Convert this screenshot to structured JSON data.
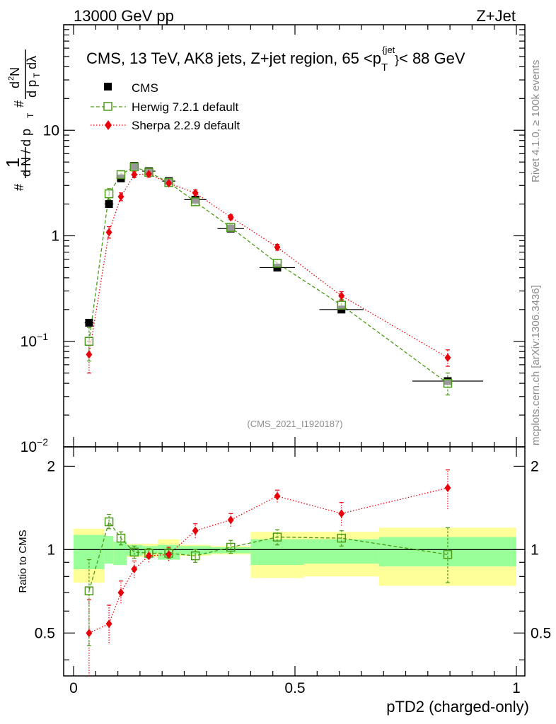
{
  "chart_data": [
    {
      "type": "scatter",
      "panel": "main",
      "header_left": "13000 GeV pp",
      "header_right": "Z+Jet",
      "title": "CMS, 13 TeV, AK8 jets, Z+jet region, 65 <p",
      "title_sub": "T",
      "title_sup": "{jet",
      "title_sup2": "}",
      "title_tail": "< 88 GeV",
      "ylabel": "# 1/dN/dp_T # d²N/dp_T dλ",
      "yscale": "log",
      "ylim": [
        0.01,
        100
      ],
      "xlim": [
        -0.02,
        1.02
      ],
      "y_ticks": [
        {
          "v": 0.01,
          "base": "10",
          "exp": "−2"
        },
        {
          "v": 0.1,
          "base": "10",
          "exp": "−1"
        },
        {
          "v": 1,
          "base": "1",
          "exp": ""
        },
        {
          "v": 10,
          "base": "10",
          "exp": ""
        }
      ],
      "x": [
        0.035,
        0.08,
        0.107,
        0.137,
        0.17,
        0.215,
        0.275,
        0.355,
        0.46,
        0.605,
        0.845
      ],
      "xerr": [
        0.01,
        0.01,
        0.01,
        0.01,
        0.015,
        0.015,
        0.025,
        0.03,
        0.04,
        0.05,
        0.08
      ],
      "series": [
        {
          "name": "CMS",
          "marker": "filled-square",
          "color": "#000000",
          "values": [
            0.15,
            2.0,
            3.5,
            4.6,
            4.1,
            3.3,
            2.2,
            1.17,
            0.5,
            0.2,
            0.042
          ]
        },
        {
          "name": "Herwig 7.2.1 default",
          "marker": "open-square",
          "color": "#4a9a16",
          "line": "dashed",
          "values": [
            0.1,
            2.5,
            3.8,
            4.5,
            4.0,
            3.2,
            2.1,
            1.2,
            0.55,
            0.22,
            0.04
          ],
          "err_lo": [
            0.065,
            2.2,
            3.5,
            4.2,
            3.75,
            3.0,
            1.95,
            1.12,
            0.5,
            0.19,
            0.031
          ],
          "err_hi": [
            0.135,
            2.8,
            4.1,
            4.8,
            4.25,
            3.4,
            2.25,
            1.28,
            0.6,
            0.25,
            0.05
          ]
        },
        {
          "name": "Sherpa 2.2.9 default",
          "marker": "filled-diamond",
          "color": "#e8000b",
          "line": "dotted",
          "values": [
            0.075,
            1.08,
            2.35,
            3.8,
            3.85,
            3.15,
            2.55,
            1.5,
            0.78,
            0.27,
            0.07
          ],
          "err_lo": [
            0.05,
            0.95,
            2.15,
            3.55,
            3.6,
            2.95,
            2.38,
            1.42,
            0.73,
            0.245,
            0.058
          ],
          "err_hi": [
            0.1,
            1.22,
            2.55,
            4.05,
            4.1,
            3.35,
            2.72,
            1.58,
            0.83,
            0.295,
            0.083
          ]
        }
      ],
      "watermark": "(CMS_2021_I1920187)"
    },
    {
      "type": "scatter",
      "panel": "ratio",
      "ylabel": "Ratio to CMS",
      "xlabel": "pTD2 (charged-only)",
      "ylim": [
        0.35,
        2.35
      ],
      "y_ticks": [
        0.5,
        1,
        2
      ],
      "x_ticks": [
        0,
        0.5,
        1
      ],
      "x_tick_labels": [
        "0",
        "0.5",
        "1"
      ],
      "bands": {
        "edges": [
          0,
          0.07,
          0.09,
          0.12,
          0.155,
          0.19,
          0.24,
          0.31,
          0.4,
          0.52,
          0.69,
          1.0
        ],
        "inner": [
          [
            0.85,
            1.13
          ],
          [
            0.89,
            1.12
          ],
          [
            0.88,
            1.07
          ],
          [
            0.95,
            1.04
          ],
          [
            0.97,
            1.03
          ],
          [
            0.92,
            1.04
          ],
          [
            0.96,
            1.03
          ],
          [
            0.97,
            1.02
          ],
          [
            0.88,
            1.09
          ],
          [
            0.89,
            1.09
          ],
          [
            0.87,
            1.11
          ]
        ],
        "outer": [
          [
            0.76,
            1.19
          ],
          [
            0.89,
            1.12
          ],
          [
            0.88,
            1.07
          ],
          [
            0.94,
            1.05
          ],
          [
            0.94,
            1.05
          ],
          [
            0.92,
            1.09
          ],
          [
            0.95,
            1.04
          ],
          [
            0.96,
            1.03
          ],
          [
            0.79,
            1.16
          ],
          [
            0.8,
            1.16
          ],
          [
            0.74,
            1.2
          ]
        ]
      },
      "series": [
        {
          "name": "Herwig 7.2.1 default",
          "color": "#4a9a16",
          "values": [
            0.71,
            1.26,
            1.1,
            0.98,
            0.97,
            0.97,
            0.95,
            1.02,
            1.11,
            1.1,
            0.96
          ],
          "err_lo": [
            0.45,
            1.19,
            1.04,
            0.93,
            0.93,
            0.93,
            0.9,
            0.97,
            1.04,
            1.03,
            0.76
          ],
          "err_hi": [
            0.92,
            1.34,
            1.16,
            1.03,
            1.01,
            1.01,
            1.0,
            1.08,
            1.18,
            1.17,
            1.2
          ]
        },
        {
          "name": "Sherpa 2.2.9 default",
          "color": "#e8000b",
          "values": [
            0.5,
            0.54,
            0.7,
            0.85,
            0.95,
            0.96,
            1.17,
            1.28,
            1.56,
            1.35,
            1.67
          ],
          "err_lo": [
            0.32,
            0.46,
            0.64,
            0.79,
            0.9,
            0.91,
            1.1,
            1.21,
            1.48,
            1.22,
            1.4
          ],
          "err_hi": [
            0.66,
            0.63,
            0.77,
            0.91,
            1.0,
            1.02,
            1.24,
            1.35,
            1.64,
            1.48,
            1.94
          ]
        }
      ]
    }
  ],
  "side_text_top": "Rivet 4.1.0, ≥ 100k events",
  "side_text_bottom": "mcplots.cern.ch [arXiv:1306.3436]"
}
